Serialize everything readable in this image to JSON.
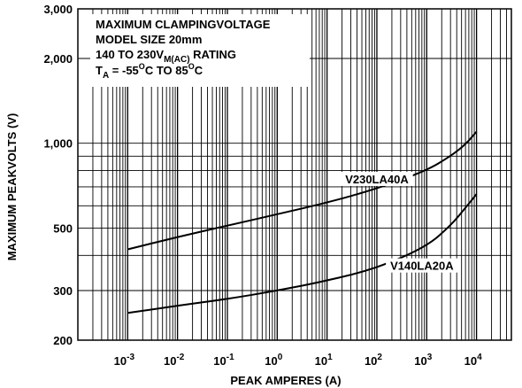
{
  "chart_data": {
    "type": "line",
    "title_lines": {
      "line1": "MAXIMUM CLAMPINGVOLTAGE",
      "line2": "MODEL SIZE 20mm",
      "line3_main": "140 TO 230V",
      "line3_sub": "M(AC)",
      "line3_tail": " RATING",
      "line4_t": "T",
      "line4_t_sub": "A",
      "line4_mid": " = -55",
      "line4_deg1": "O",
      "line4_to": "C TO 85",
      "line4_deg2": "O",
      "line4_end": "C"
    },
    "xlabel": "PEAK AMPERES (A)",
    "ylabel": "MAXIMUM PEAKVOLTS (V)",
    "x_scale": "log",
    "y_scale": "log",
    "xlim": [
      0.0001,
      50000
    ],
    "ylim": [
      200,
      3000
    ],
    "x_ticks": [
      {
        "base": "10",
        "exp": "-3",
        "value": 0.001
      },
      {
        "base": "10",
        "exp": "-2",
        "value": 0.01
      },
      {
        "base": "10",
        "exp": "-1",
        "value": 0.1
      },
      {
        "base": "10",
        "exp": "0",
        "value": 1
      },
      {
        "base": "10",
        "exp": "1",
        "value": 10
      },
      {
        "base": "10",
        "exp": "2",
        "value": 100
      },
      {
        "base": "10",
        "exp": "3",
        "value": 1000
      },
      {
        "base": "10",
        "exp": "4",
        "value": 10000
      }
    ],
    "y_ticks": [
      {
        "label": "200",
        "value": 200
      },
      {
        "label": "300",
        "value": 300
      },
      {
        "label": "500",
        "value": 500
      },
      {
        "label": "1,000",
        "value": 1000
      },
      {
        "label": "2,000",
        "value": 2000
      },
      {
        "label": "3,000",
        "value": 3000
      }
    ],
    "grid": true,
    "series": [
      {
        "name": "V230LA40A",
        "x": [
          0.001,
          0.01,
          0.1,
          1,
          10,
          100,
          1000,
          3000,
          6000,
          10000
        ],
        "y": [
          420,
          465,
          510,
          560,
          615,
          690,
          800,
          900,
          990,
          1100
        ]
      },
      {
        "name": "V140LA20A",
        "x": [
          0.001,
          0.01,
          0.1,
          1,
          10,
          100,
          1000,
          3000,
          6000,
          10000
        ],
        "y": [
          250,
          265,
          280,
          300,
          325,
          360,
          430,
          510,
          590,
          660
        ]
      }
    ]
  }
}
